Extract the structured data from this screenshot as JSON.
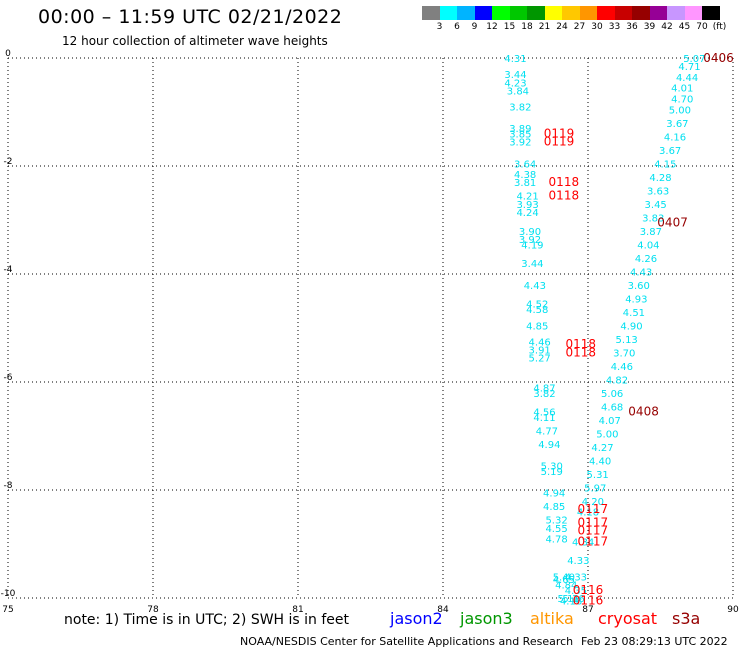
{
  "title": "00:00 – 11:59 UTC 02/21/2022",
  "subtitle": "12 hour collection of altimeter wave heights",
  "colorbar": {
    "colors": [
      "#808080",
      "#00ffff",
      "#00b4ff",
      "#0000ff",
      "#00ff00",
      "#00c800",
      "#009600",
      "#ffff00",
      "#ffc800",
      "#ff9600",
      "#ff0000",
      "#c80000",
      "#960000",
      "#960096",
      "#c896ff",
      "#ff96ff",
      "#000000"
    ],
    "labels": [
      "3",
      "6",
      "9",
      "12",
      "15",
      "18",
      "21",
      "24",
      "27",
      "30",
      "33",
      "36",
      "39",
      "42",
      "45",
      "70",
      "(ft)"
    ]
  },
  "note": "note: 1) Time is in UTC; 2) SWH is in feet",
  "satellites": [
    {
      "name": "jason2",
      "color": "#0000ff"
    },
    {
      "name": "jason3",
      "color": "#009600"
    },
    {
      "name": "altika",
      "color": "#ff9600"
    },
    {
      "name": "cryosat",
      "color": "#ff0000"
    },
    {
      "name": "s3a",
      "color": "#960000"
    }
  ],
  "footer_left": "NOAA/NESDIS Center for Satellite Applications and Research",
  "footer_right": "Feb 23 08:29:13 UTC 2022",
  "chart_data": {
    "type": "scatter",
    "title": "",
    "xlabel": "",
    "ylabel": "",
    "xlim": [
      75,
      90
    ],
    "ylim": [
      -10,
      0
    ],
    "xticks": [
      "75",
      "78",
      "81",
      "84",
      "87",
      "90"
    ],
    "yticks": [
      "0",
      "-2",
      "-4",
      "-6",
      "-8",
      "-10"
    ],
    "grid": true,
    "track_a": {
      "color": "#00e0f0",
      "points": [
        [
          85.5,
          -0.0,
          "4.31"
        ],
        [
          85.5,
          -0.3,
          "3.44"
        ],
        [
          85.5,
          -0.45,
          "4.23"
        ],
        [
          85.55,
          -0.6,
          "3.84"
        ],
        [
          85.6,
          -0.9,
          "3.82"
        ],
        [
          85.6,
          -1.3,
          "3.89"
        ],
        [
          85.6,
          -1.4,
          "3.85"
        ],
        [
          85.6,
          -1.55,
          "3.92"
        ],
        [
          85.7,
          -1.95,
          "3.64"
        ],
        [
          85.7,
          -2.15,
          "4.38"
        ],
        [
          85.7,
          -2.3,
          "3.81"
        ],
        [
          85.75,
          -2.55,
          "4.21"
        ],
        [
          85.75,
          -2.7,
          "3.93"
        ],
        [
          85.75,
          -2.85,
          "4.24"
        ],
        [
          85.8,
          -3.2,
          "3.90"
        ],
        [
          85.8,
          -3.35,
          "3.92"
        ],
        [
          85.85,
          -3.45,
          "4.19"
        ],
        [
          85.85,
          -3.8,
          "3.44"
        ],
        [
          85.9,
          -4.2,
          "4.43"
        ],
        [
          85.95,
          -4.55,
          "4.52"
        ],
        [
          85.95,
          -4.65,
          "4.58"
        ],
        [
          85.95,
          -4.95,
          "4.85"
        ],
        [
          86.0,
          -5.25,
          "4.46"
        ],
        [
          86.0,
          -5.4,
          "3.91"
        ],
        [
          86.0,
          -5.55,
          "5.27"
        ],
        [
          86.1,
          -6.1,
          "4.87"
        ],
        [
          86.1,
          -6.2,
          "3.82"
        ],
        [
          86.1,
          -6.55,
          "4.56"
        ],
        [
          86.1,
          -6.65,
          "4.11"
        ],
        [
          86.15,
          -6.9,
          "4.77"
        ],
        [
          86.2,
          -7.15,
          "4.94"
        ],
        [
          86.25,
          -7.55,
          "5.30"
        ],
        [
          86.25,
          -7.65,
          "5.19"
        ],
        [
          86.3,
          -8.05,
          "4.94"
        ],
        [
          86.3,
          -8.3,
          "4.85"
        ],
        [
          86.35,
          -8.55,
          "5.32"
        ],
        [
          86.35,
          -8.7,
          "4.55"
        ],
        [
          86.35,
          -8.9,
          "4.78"
        ],
        [
          86.5,
          -9.6,
          "5.40"
        ],
        [
          86.55,
          -9.75,
          "4.84"
        ],
        [
          86.5,
          -9.65,
          "4.65"
        ],
        [
          86.6,
          -10.0,
          "5.11"
        ],
        [
          86.65,
          -10.05,
          "4.18"
        ]
      ]
    },
    "track_b": {
      "color": "#00e0f0",
      "points": [
        [
          89.2,
          0.0,
          "5.07"
        ],
        [
          89.1,
          -0.15,
          "4.71"
        ],
        [
          89.05,
          -0.35,
          "4.44"
        ],
        [
          88.95,
          -0.55,
          "4.01"
        ],
        [
          88.95,
          -0.75,
          "4.70"
        ],
        [
          88.9,
          -0.95,
          "5.00"
        ],
        [
          88.85,
          -1.2,
          "3.67"
        ],
        [
          88.8,
          -1.45,
          "4.16"
        ],
        [
          88.7,
          -1.7,
          "3.67"
        ],
        [
          88.6,
          -1.95,
          "4.15"
        ],
        [
          88.5,
          -2.2,
          "4.28"
        ],
        [
          88.45,
          -2.45,
          "3.63"
        ],
        [
          88.4,
          -2.7,
          "3.45"
        ],
        [
          88.35,
          -2.95,
          "3.83"
        ],
        [
          88.3,
          -3.2,
          "3.87"
        ],
        [
          88.25,
          -3.45,
          "4.04"
        ],
        [
          88.2,
          -3.7,
          "4.26"
        ],
        [
          88.1,
          -3.95,
          "4.43"
        ],
        [
          88.05,
          -4.2,
          "3.60"
        ],
        [
          88.0,
          -4.45,
          "4.93"
        ],
        [
          87.95,
          -4.7,
          "4.51"
        ],
        [
          87.9,
          -4.95,
          "4.90"
        ],
        [
          87.8,
          -5.2,
          "5.13"
        ],
        [
          87.75,
          -5.45,
          "3.70"
        ],
        [
          87.7,
          -5.7,
          "4.46"
        ],
        [
          87.6,
          -5.95,
          "4.82"
        ],
        [
          87.5,
          -6.2,
          "5.06"
        ],
        [
          87.5,
          -6.45,
          "4.68"
        ],
        [
          87.45,
          -6.7,
          "4.07"
        ],
        [
          87.4,
          -6.95,
          "5.00"
        ],
        [
          87.3,
          -7.2,
          "4.27"
        ],
        [
          87.25,
          -7.45,
          "4.40"
        ],
        [
          87.2,
          -7.7,
          "5.31"
        ],
        [
          87.15,
          -7.95,
          "5.97"
        ],
        [
          87.1,
          -8.2,
          "4.20"
        ],
        [
          87.0,
          -8.4,
          "4.18"
        ],
        [
          86.9,
          -8.95,
          "4.34"
        ],
        [
          86.8,
          -9.3,
          "4.33"
        ],
        [
          86.75,
          -9.6,
          "4.33"
        ],
        [
          86.75,
          -9.85,
          "4.35"
        ],
        [
          86.7,
          -10.0,
          "5.16"
        ]
      ]
    },
    "cryosat_times": [
      [
        86.4,
        -1.4,
        "0119"
      ],
      [
        86.4,
        -1.55,
        "0119"
      ],
      [
        86.5,
        -2.3,
        "0118"
      ],
      [
        86.5,
        -2.55,
        "0118"
      ],
      [
        86.85,
        -5.3,
        "0118"
      ],
      [
        86.85,
        -5.45,
        "0118"
      ],
      [
        87.1,
        -8.35,
        "0117"
      ],
      [
        87.1,
        -8.6,
        "0117"
      ],
      [
        87.1,
        -8.75,
        "0117"
      ],
      [
        87.1,
        -8.95,
        "0117"
      ],
      [
        87.0,
        -9.85,
        "0116"
      ],
      [
        87.0,
        -10.05,
        "0116"
      ]
    ],
    "s3a_times": [
      [
        89.7,
        0.0,
        "0406"
      ],
      [
        88.75,
        -3.05,
        "0407"
      ],
      [
        88.15,
        -6.55,
        "0408"
      ]
    ]
  }
}
